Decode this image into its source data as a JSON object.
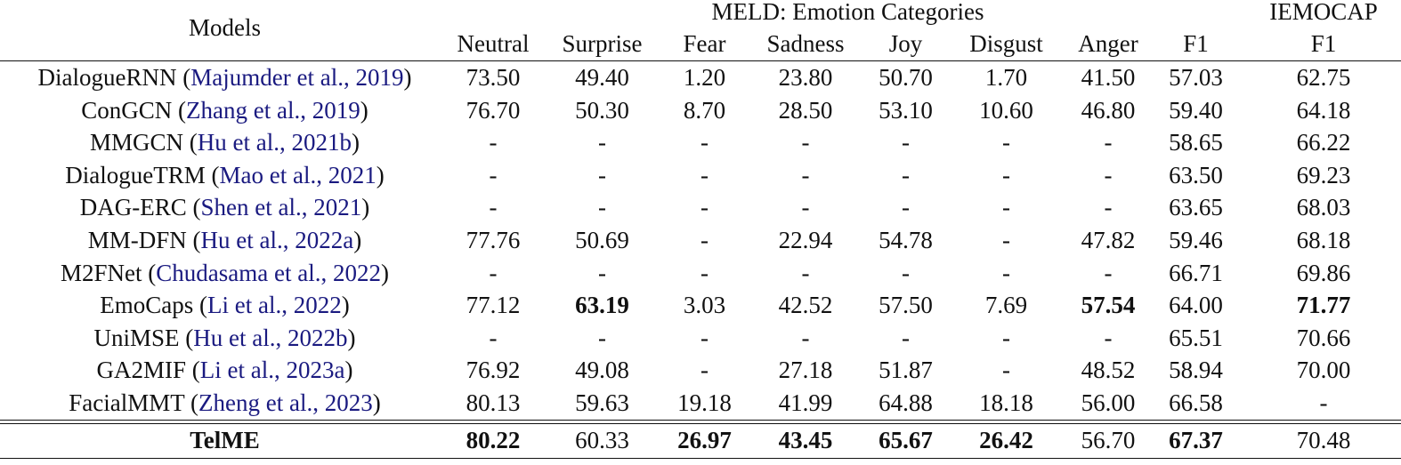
{
  "table": {
    "header": {
      "models_label": "Models",
      "meld_group_label": "MELD: Emotion Categories",
      "iemocap_group_label": "IEMOCAP",
      "columns": [
        "Neutral",
        "Surprise",
        "Fear",
        "Sadness",
        "Joy",
        "Disgust",
        "Anger",
        "F1",
        "F1"
      ]
    },
    "rows": [
      {
        "model": "DialogueRNN",
        "citation": "Majumder et al., 2019",
        "values": [
          "73.50",
          "49.40",
          "1.20",
          "23.80",
          "50.70",
          "1.70",
          "41.50",
          "57.03",
          "62.75"
        ],
        "bold": []
      },
      {
        "model": "ConGCN",
        "citation": "Zhang et al., 2019",
        "values": [
          "76.70",
          "50.30",
          "8.70",
          "28.50",
          "53.10",
          "10.60",
          "46.80",
          "59.40",
          "64.18"
        ],
        "bold": []
      },
      {
        "model": "MMGCN",
        "citation": "Hu et al., 2021b",
        "values": [
          "-",
          "-",
          "-",
          "-",
          "-",
          "-",
          "-",
          "58.65",
          "66.22"
        ],
        "bold": []
      },
      {
        "model": "DialogueTRM",
        "citation": "Mao et al., 2021",
        "values": [
          "-",
          "-",
          "-",
          "-",
          "-",
          "-",
          "-",
          "63.50",
          "69.23"
        ],
        "bold": []
      },
      {
        "model": "DAG-ERC",
        "citation": "Shen et al., 2021",
        "values": [
          "-",
          "-",
          "-",
          "-",
          "-",
          "-",
          "-",
          "63.65",
          "68.03"
        ],
        "bold": []
      },
      {
        "model": "MM-DFN",
        "citation": "Hu et al., 2022a",
        "values": [
          "77.76",
          "50.69",
          "-",
          "22.94",
          "54.78",
          "-",
          "47.82",
          "59.46",
          "68.18"
        ],
        "bold": []
      },
      {
        "model": "M2FNet",
        "citation": "Chudasama et al., 2022",
        "values": [
          "-",
          "-",
          "-",
          "-",
          "-",
          "-",
          "-",
          "66.71",
          "69.86"
        ],
        "bold": []
      },
      {
        "model": "EmoCaps",
        "citation": "Li et al., 2022",
        "values": [
          "77.12",
          "63.19",
          "3.03",
          "42.52",
          "57.50",
          "7.69",
          "57.54",
          "64.00",
          "71.77"
        ],
        "bold": [
          1,
          6,
          8
        ]
      },
      {
        "model": "UniMSE",
        "citation": "Hu et al., 2022b",
        "values": [
          "-",
          "-",
          "-",
          "-",
          "-",
          "-",
          "-",
          "65.51",
          "70.66"
        ],
        "bold": []
      },
      {
        "model": "GA2MIF",
        "citation": "Li et al., 2023a",
        "values": [
          "76.92",
          "49.08",
          "-",
          "27.18",
          "51.87",
          "-",
          "48.52",
          "58.94",
          "70.00"
        ],
        "bold": []
      },
      {
        "model": "FacialMMT",
        "citation": "Zheng et al., 2023",
        "values": [
          "80.13",
          "59.63",
          "19.18",
          "41.99",
          "64.88",
          "18.18",
          "56.00",
          "66.58",
          "-"
        ],
        "bold": []
      }
    ],
    "ours": {
      "model": "TelME",
      "values": [
        "80.22",
        "60.33",
        "26.97",
        "43.45",
        "65.67",
        "26.42",
        "56.70",
        "67.37",
        "70.48"
      ],
      "bold": [
        0,
        2,
        3,
        4,
        5,
        7
      ]
    }
  },
  "colors": {
    "text": "#111111",
    "citation_link": "#1a1a80",
    "rule": "#111111"
  },
  "chart_data": {
    "type": "table",
    "title": "",
    "columns": [
      "Models",
      "MELD Neutral",
      "MELD Surprise",
      "MELD Fear",
      "MELD Sadness",
      "MELD Joy",
      "MELD Disgust",
      "MELD Anger",
      "MELD F1",
      "IEMOCAP F1"
    ],
    "rows": [
      [
        "DialogueRNN (Majumder et al., 2019)",
        73.5,
        49.4,
        1.2,
        23.8,
        50.7,
        1.7,
        41.5,
        57.03,
        62.75
      ],
      [
        "ConGCN (Zhang et al., 2019)",
        76.7,
        50.3,
        8.7,
        28.5,
        53.1,
        10.6,
        46.8,
        59.4,
        64.18
      ],
      [
        "MMGCN (Hu et al., 2021b)",
        null,
        null,
        null,
        null,
        null,
        null,
        null,
        58.65,
        66.22
      ],
      [
        "DialogueTRM (Mao et al., 2021)",
        null,
        null,
        null,
        null,
        null,
        null,
        null,
        63.5,
        69.23
      ],
      [
        "DAG-ERC (Shen et al., 2021)",
        null,
        null,
        null,
        null,
        null,
        null,
        null,
        63.65,
        68.03
      ],
      [
        "MM-DFN (Hu et al., 2022a)",
        77.76,
        50.69,
        null,
        22.94,
        54.78,
        null,
        47.82,
        59.46,
        68.18
      ],
      [
        "M2FNet (Chudasama et al., 2022)",
        null,
        null,
        null,
        null,
        null,
        null,
        null,
        66.71,
        69.86
      ],
      [
        "EmoCaps (Li et al., 2022)",
        77.12,
        63.19,
        3.03,
        42.52,
        57.5,
        7.69,
        57.54,
        64.0,
        71.77
      ],
      [
        "UniMSE (Hu et al., 2022b)",
        null,
        null,
        null,
        null,
        null,
        null,
        null,
        65.51,
        70.66
      ],
      [
        "GA2MIF (Li et al., 2023a)",
        76.92,
        49.08,
        null,
        27.18,
        51.87,
        null,
        48.52,
        58.94,
        70.0
      ],
      [
        "FacialMMT (Zheng et al., 2023)",
        80.13,
        59.63,
        19.18,
        41.99,
        64.88,
        18.18,
        56.0,
        66.58,
        null
      ],
      [
        "TelME",
        80.22,
        60.33,
        26.97,
        43.45,
        65.67,
        26.42,
        56.7,
        67.37,
        70.48
      ]
    ]
  }
}
